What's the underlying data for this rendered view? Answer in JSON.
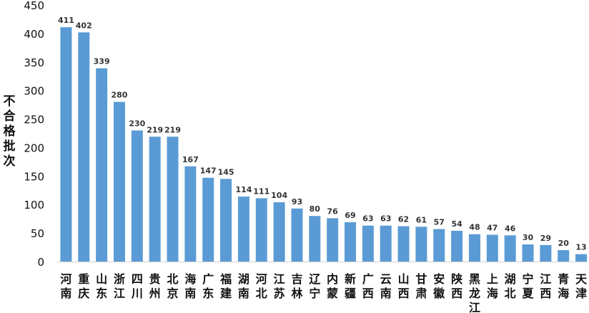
{
  "chart_data": {
    "type": "bar",
    "title": "",
    "xlabel": "",
    "ylabel": "不合格批次",
    "ylim": [
      0,
      450
    ],
    "yticks": [
      0,
      50,
      100,
      150,
      200,
      250,
      300,
      350,
      400,
      450
    ],
    "grid": false,
    "bar_color": "#5b9bd5",
    "categories": [
      "河南",
      "重庆",
      "山东",
      "浙江",
      "四川",
      "贵州",
      "北京",
      "海南",
      "广东",
      "福建",
      "湖南",
      "河北",
      "江苏",
      "吉林",
      "辽宁",
      "内蒙",
      "新疆",
      "广西",
      "云南",
      "山西",
      "甘肃",
      "安徽",
      "陕西",
      "黑龙江",
      "上海",
      "湖北",
      "宁夏",
      "江西",
      "青海",
      "天津"
    ],
    "values": [
      411,
      402,
      339,
      280,
      230,
      219,
      219,
      167,
      147,
      145,
      114,
      111,
      104,
      93,
      80,
      76,
      69,
      63,
      63,
      62,
      61,
      57,
      54,
      48,
      47,
      46,
      30,
      29,
      20,
      13
    ]
  }
}
